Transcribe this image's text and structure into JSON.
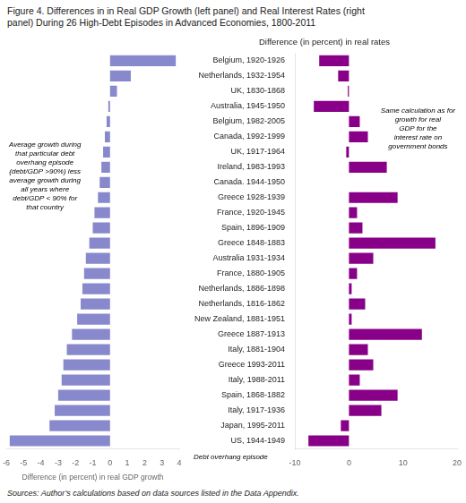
{
  "title": [
    "Figure 4. Differences in in Real GDP Growth (left panel) and Real Interest Rates (right",
    "panel) During 26 High-Debt Episodes in Advanced Economies, 1800-2011"
  ],
  "source": "Sources: Author’s calculations based on data sources listed in the Data Appendix.",
  "chart_data": [
    {
      "type": "bar",
      "orientation": "horizontal",
      "categories": [
        "Belgium, 1920-1926",
        "Netherlands, 1932-1954",
        "UK, 1830-1868",
        "Australia, 1945-1950",
        "Belgium, 1982-2005",
        "Canada, 1992-1999",
        "UK, 1917-1964",
        "Ireland, 1983-1993",
        "Canada. 1944-1950",
        "Greece 1928-1939",
        "France, 1920-1945",
        "Spain, 1896-1909",
        "Greece 1848-1883",
        "Australia 1931-1934",
        "France, 1880-1905",
        "Netherlands, 1886-1898",
        "Netherlands, 1816-1862",
        "New Zealand, 1881-1951",
        "Greece 1887-1913",
        "Italy, 1881-1904",
        "Greece 1993-2011",
        "Italy, 1988-2011",
        "Spain, 1868-1882",
        "Italy, 1917-1936",
        "Japan, 1995-2011",
        "US, 1944-1949"
      ],
      "values": [
        3.8,
        1.2,
        0.4,
        -0.1,
        -0.2,
        -0.3,
        -0.4,
        -0.5,
        -0.6,
        -0.7,
        -0.9,
        -1.0,
        -1.2,
        -1.4,
        -1.5,
        -1.6,
        -1.7,
        -1.9,
        -2.2,
        -2.5,
        -2.7,
        -2.8,
        -3.0,
        -3.2,
        -3.5,
        -5.8
      ],
      "color": "#8888cc",
      "xlim": [
        -6,
        4
      ],
      "xticks": [
        -6,
        -5,
        -4,
        -3,
        -2,
        -1,
        0,
        1,
        2,
        3,
        4
      ],
      "xlabel": "Difference (in percent) in real GDP growth",
      "annotation": "Average growth during\nthat particular debt\noverhang episode\n(debt/GDP >90%) less\naverage growth during\nall years where\ndebt/GDP < 90% for\nthat country",
      "tick_labels": "x",
      "grid": false
    },
    {
      "type": "bar",
      "orientation": "horizontal",
      "title": "Difference (in percent) in real rates",
      "categories": [
        "Belgium, 1920-1926",
        "Netherlands, 1932-1954",
        "UK, 1830-1868",
        "Australia, 1945-1950",
        "Belgium, 1982-2005",
        "Canada, 1992-1999",
        "UK, 1917-1964",
        "Ireland, 1983-1993",
        "Canada. 1944-1950",
        "Greece 1928-1939",
        "France, 1920-1945",
        "Spain, 1896-1909",
        "Greece 1848-1883",
        "Australia 1931-1934",
        "France, 1880-1905",
        "Netherlands, 1886-1898",
        "Netherlands, 1816-1862",
        "New Zealand, 1881-1951",
        "Greece 1887-1913",
        "Italy, 1881-1904",
        "Greece 1993-2011",
        "Italy, 1988-2011",
        "Spain, 1868-1882",
        "Italy, 1917-1936",
        "Japan, 1995-2011",
        "US, 1944-1949"
      ],
      "values": [
        -5.5,
        -2.0,
        -0.2,
        -6.5,
        2.0,
        3.5,
        -0.5,
        7.0,
        0.0,
        9.0,
        1.5,
        2.5,
        16.0,
        4.5,
        1.5,
        0.5,
        3.0,
        0.5,
        13.5,
        3.5,
        4.5,
        2.0,
        9.0,
        6.0,
        -1.5,
        -7.5
      ],
      "color": "#880088",
      "xlim": [
        -10,
        20
      ],
      "xticks": [
        -10,
        0,
        10,
        20
      ],
      "ylabel": "Debt overhang episode",
      "annotation": "Same calculation as for\ngrowth for real\nGDP for the\ninterest rate on\ngovernment bonds",
      "grid": false
    }
  ]
}
